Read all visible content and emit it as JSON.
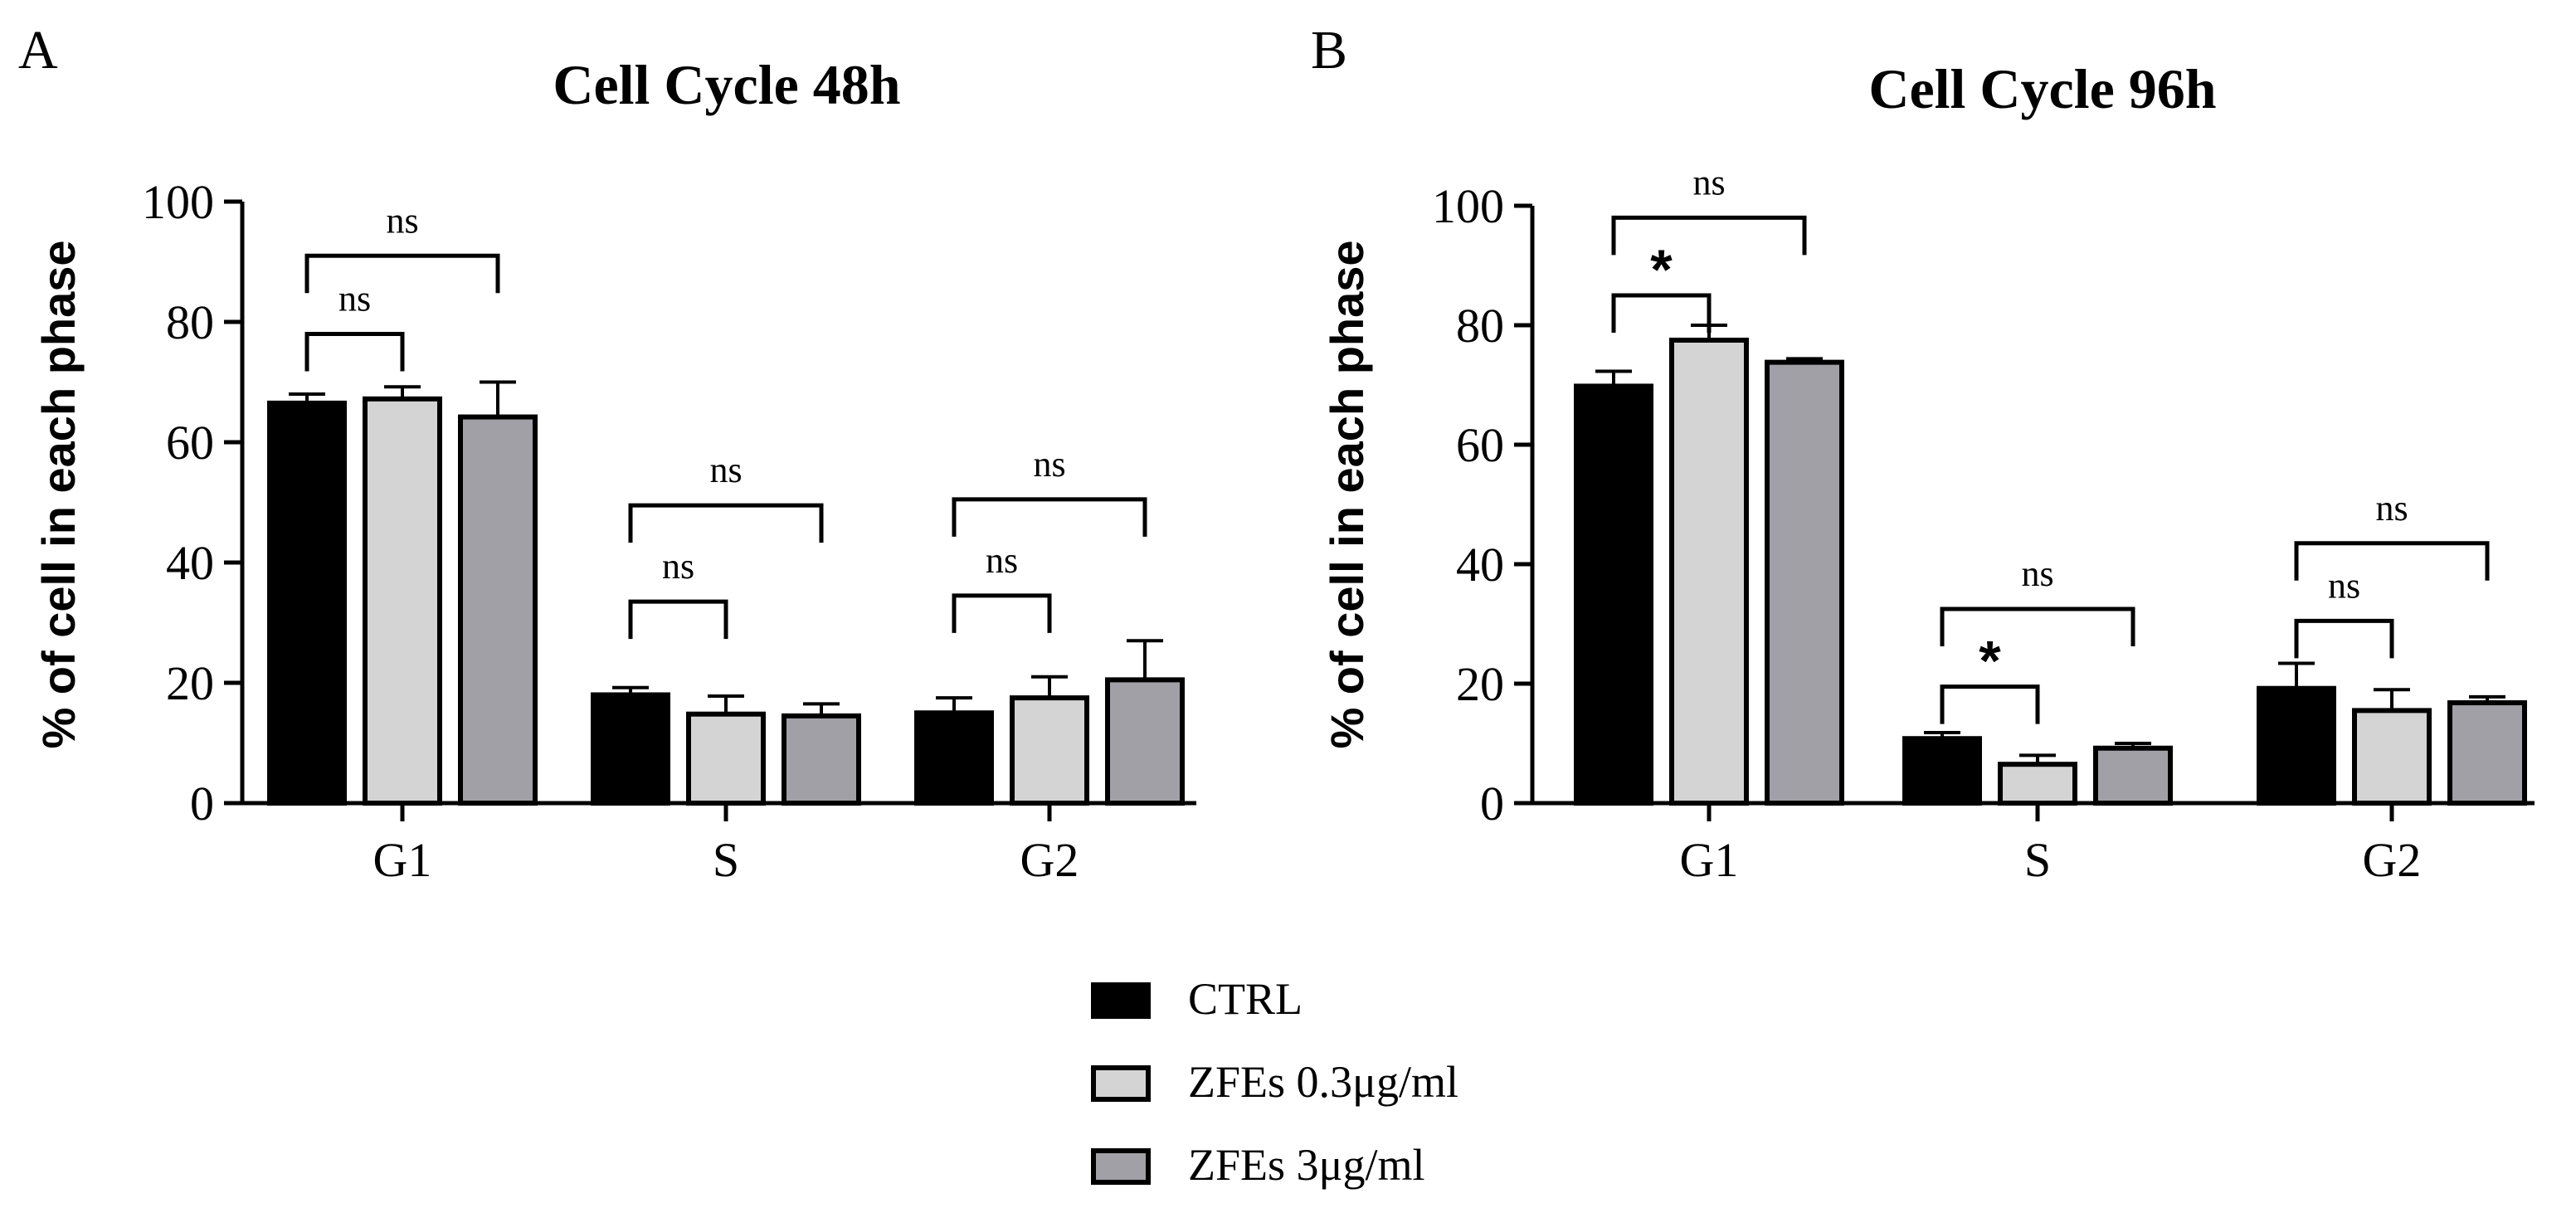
{
  "figure": {
    "legend": [
      {
        "label": "CTRL",
        "color": "#000000"
      },
      {
        "label": "ZFEs 0.3μg/ml",
        "color": "#d4d4d4"
      },
      {
        "label": "ZFEs 3μg/ml",
        "color": "#a0a0a6"
      }
    ]
  },
  "chart_data": [
    {
      "type": "bar",
      "panel": "A",
      "title": "Cell Cycle 48h",
      "ylabel": "% of cell in each phase",
      "xlabel": "",
      "ylim": [
        0,
        100
      ],
      "yticks": [
        0,
        20,
        40,
        60,
        80,
        100
      ],
      "categories": [
        "G1",
        "S",
        "G2"
      ],
      "series": [
        {
          "name": "CTRL",
          "values": [
            66.5,
            18.0,
            15.0
          ],
          "errors": [
            1.5,
            1.2,
            2.5
          ]
        },
        {
          "name": "ZFEs 0.3μg/ml",
          "values": [
            67.2,
            14.8,
            17.5
          ],
          "errors": [
            2.0,
            3.0,
            3.5
          ]
        },
        {
          "name": "ZFEs 3μg/ml",
          "values": [
            64.2,
            14.5,
            20.5
          ],
          "errors": [
            5.8,
            2.0,
            6.5
          ]
        }
      ],
      "comparisons": [
        {
          "category": "G1",
          "from": 0,
          "to": 1,
          "y": 78,
          "label": "ns"
        },
        {
          "category": "G1",
          "from": 0,
          "to": 2,
          "y": 91,
          "label": "ns"
        },
        {
          "category": "S",
          "from": 0,
          "to": 1,
          "y": 33.5,
          "label": "ns"
        },
        {
          "category": "S",
          "from": 0,
          "to": 2,
          "y": 49.5,
          "label": "ns"
        },
        {
          "category": "G2",
          "from": 0,
          "to": 1,
          "y": 34.5,
          "label": "ns"
        },
        {
          "category": "G2",
          "from": 0,
          "to": 2,
          "y": 50.5,
          "label": "ns"
        }
      ]
    },
    {
      "type": "bar",
      "panel": "B",
      "title": "Cell Cycle 96h",
      "ylabel": "% of cell in each phase",
      "xlabel": "",
      "ylim": [
        0,
        100
      ],
      "yticks": [
        0,
        20,
        40,
        60,
        80,
        100
      ],
      "categories": [
        "G1",
        "S",
        "G2"
      ],
      "series": [
        {
          "name": "CTRL",
          "values": [
            69.8,
            10.8,
            19.2
          ],
          "errors": [
            2.5,
            1.0,
            4.2
          ]
        },
        {
          "name": "ZFEs 0.3μg/ml",
          "values": [
            77.5,
            6.5,
            15.5
          ],
          "errors": [
            2.5,
            1.5,
            3.5
          ]
        },
        {
          "name": "ZFEs 3μg/ml",
          "values": [
            73.8,
            9.2,
            16.8
          ],
          "errors": [
            0.6,
            0.8,
            1.0
          ]
        }
      ],
      "comparisons": [
        {
          "category": "G1",
          "from": 0,
          "to": 1,
          "y": 85,
          "label": "*"
        },
        {
          "category": "G1",
          "from": 0,
          "to": 2,
          "y": 98,
          "label": "ns"
        },
        {
          "category": "S",
          "from": 0,
          "to": 1,
          "y": 19.5,
          "label": "*"
        },
        {
          "category": "S",
          "from": 0,
          "to": 2,
          "y": 32.5,
          "label": "ns"
        },
        {
          "category": "G2",
          "from": 0,
          "to": 1,
          "y": 30.5,
          "label": "ns"
        },
        {
          "category": "G2",
          "from": 0,
          "to": 2,
          "y": 43.5,
          "label": "ns"
        }
      ]
    }
  ]
}
